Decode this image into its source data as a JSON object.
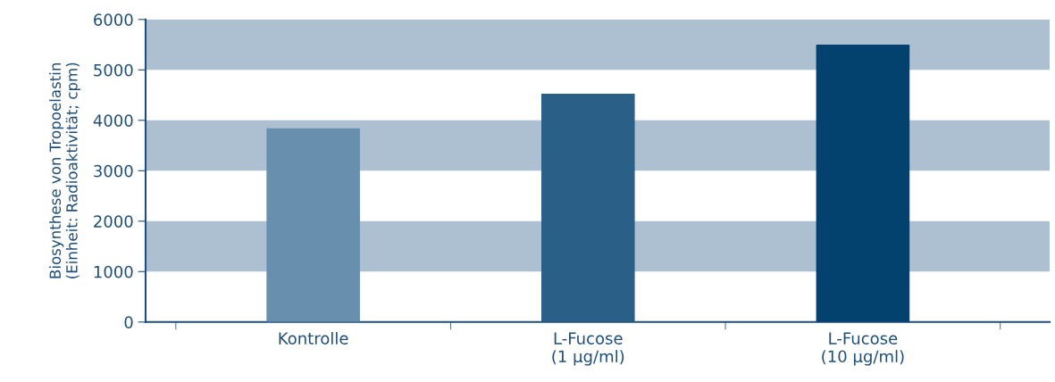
{
  "chart_data": {
    "type": "bar",
    "ylabel": "Biosynthese von Tropoelastin\n(Einheit: Radioaktivität; cpm)",
    "categories": [
      "Kontrolle",
      "L-Fucose\n(1 µg/ml)",
      "L-Fucose\n(10 µg/ml)"
    ],
    "values": [
      3840,
      4530,
      5500
    ],
    "colors": [
      "#6890ae",
      "#2a5f87",
      "#03416f"
    ],
    "ylim": [
      0,
      6000
    ],
    "yticks": [
      0,
      1000,
      2000,
      3000,
      4000,
      5000,
      6000
    ],
    "bands": [
      {
        "axis": "y",
        "from": 1000,
        "to": 2000,
        "color": "#adc0d1"
      },
      {
        "axis": "y",
        "from": 3000,
        "to": 4000,
        "color": "#adc0d1"
      },
      {
        "axis": "y",
        "from": 5000,
        "to": 6000,
        "color": "#adc0d1"
      }
    ],
    "grid": false,
    "legend": false
  }
}
